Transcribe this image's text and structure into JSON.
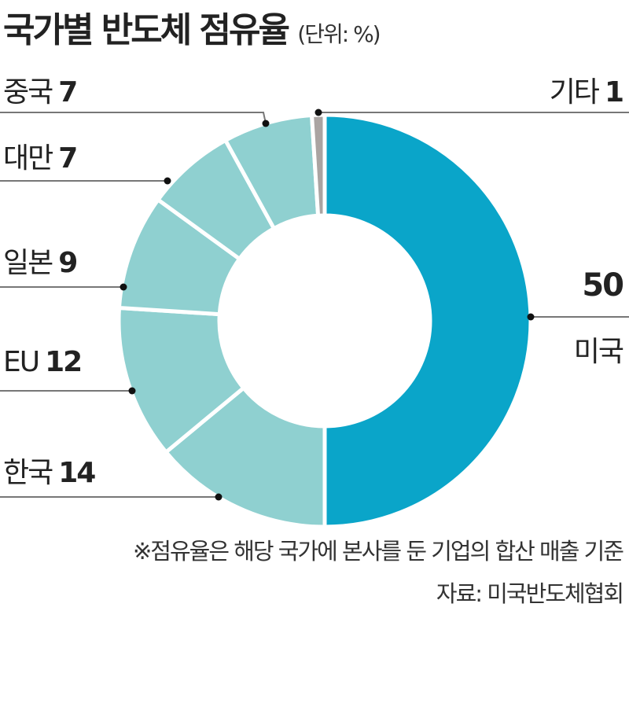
{
  "chart_data": {
    "type": "pie",
    "donut": true,
    "title": "국가별 반도체 점유율",
    "unit_note": "(단위: %)",
    "categories": [
      "미국",
      "한국",
      "EU",
      "일본",
      "대만",
      "중국",
      "기타"
    ],
    "values": [
      50,
      14,
      12,
      9,
      7,
      7,
      1
    ],
    "colors": [
      "#0aa5c9",
      "#8fd0d0",
      "#8fd0d0",
      "#8fd0d0",
      "#8fd0d0",
      "#8fd0d0",
      "#aaa4a2"
    ],
    "footnote": "※점유율은 해당 국가에 본사를 둔 기업의 합산 매출 기준",
    "source": "자료: 미국반도체협회"
  }
}
